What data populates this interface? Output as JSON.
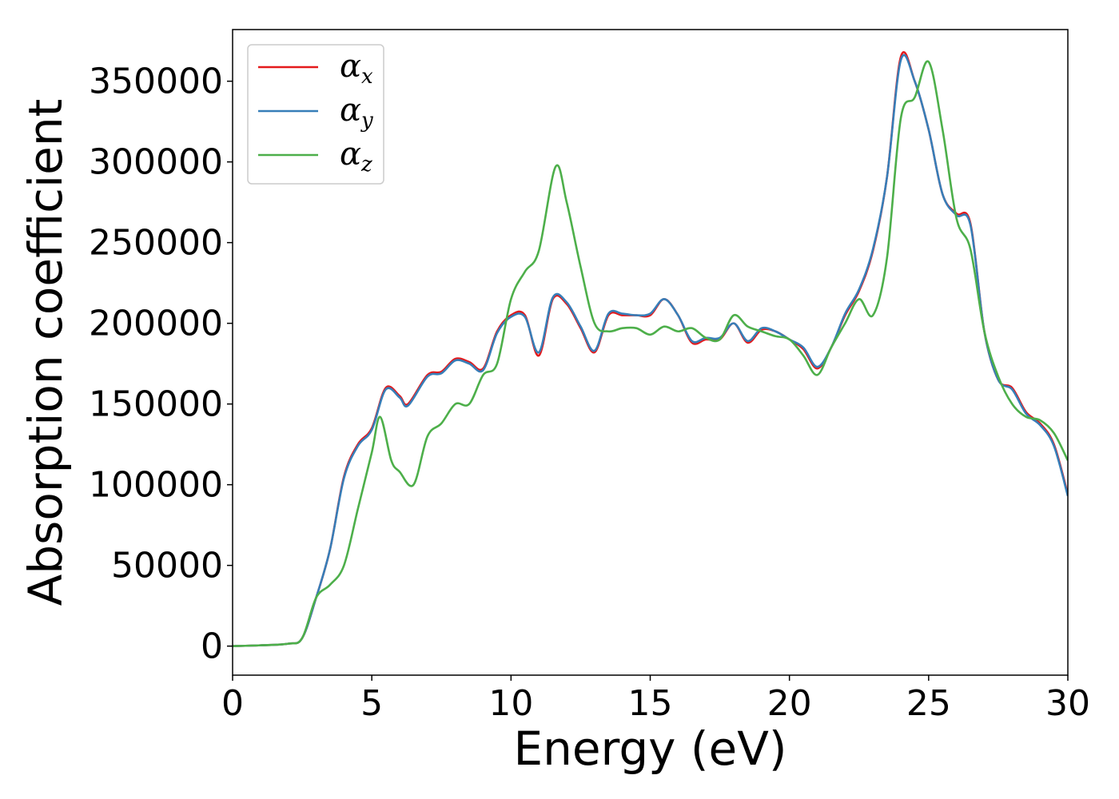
{
  "chart_data": {
    "type": "line",
    "xlabel": "Energy (eV)",
    "ylabel": "Absorption coefficient",
    "xlim": [
      0,
      30
    ],
    "ylim": [
      -18000,
      382000
    ],
    "xticks": [
      0,
      5,
      10,
      15,
      20,
      25,
      30
    ],
    "yticks": [
      0,
      50000,
      100000,
      150000,
      200000,
      250000,
      300000,
      350000
    ],
    "grid": false,
    "legend_position": "top-left",
    "series": [
      {
        "name": "α_x",
        "label_base": "α",
        "label_sub": "x",
        "color": "#e41a1c",
        "x": [
          0,
          1,
          2,
          2.5,
          3,
          3.5,
          4,
          4.5,
          5,
          5.5,
          6,
          6.3,
          7,
          7.5,
          8,
          8.5,
          9,
          9.5,
          10,
          10.5,
          11,
          11.5,
          12,
          12.5,
          13,
          13.5,
          14,
          14.5,
          15,
          15.5,
          16,
          16.5,
          17,
          17.5,
          18,
          18.5,
          19,
          19.5,
          20,
          20.5,
          21,
          21.5,
          22,
          22.5,
          23,
          23.5,
          24,
          24.5,
          25,
          25.5,
          26,
          26.5,
          27,
          27.5,
          28,
          28.5,
          29,
          29.5,
          30
        ],
        "values": [
          0,
          500,
          1500,
          5000,
          30000,
          60000,
          105000,
          125000,
          135000,
          160000,
          155000,
          150000,
          168000,
          170000,
          178000,
          176000,
          172000,
          195000,
          205000,
          205000,
          180000,
          215000,
          212000,
          197000,
          182000,
          205000,
          205000,
          205000,
          205000,
          215000,
          205000,
          188000,
          190000,
          190000,
          200000,
          188000,
          196000,
          195000,
          190000,
          184000,
          172000,
          185000,
          205000,
          220000,
          245000,
          290000,
          365000,
          350000,
          320000,
          280000,
          268000,
          262000,
          195000,
          165000,
          160000,
          145000,
          138000,
          125000,
          94000
        ]
      },
      {
        "name": "α_y",
        "label_base": "α",
        "label_sub": "y",
        "color": "#377eb8",
        "x": [
          0,
          1,
          2,
          2.5,
          3,
          3.5,
          4,
          4.5,
          5,
          5.5,
          6,
          6.3,
          7,
          7.5,
          8,
          8.5,
          9,
          9.5,
          10,
          10.5,
          11,
          11.5,
          12,
          12.5,
          13,
          13.5,
          14,
          14.5,
          15,
          15.5,
          16,
          16.5,
          17,
          17.5,
          18,
          18.5,
          19,
          19.5,
          20,
          20.5,
          21,
          21.5,
          22,
          22.5,
          23,
          23.5,
          24,
          24.5,
          25,
          25.5,
          26,
          26.5,
          27,
          27.5,
          28,
          28.5,
          29,
          29.5,
          30
        ],
        "values": [
          0,
          500,
          1500,
          5000,
          30000,
          60000,
          104000,
          124000,
          134000,
          159000,
          154000,
          149000,
          167000,
          169000,
          177000,
          175000,
          171000,
          194000,
          204000,
          204000,
          182000,
          216000,
          213000,
          198000,
          183000,
          206000,
          206000,
          205000,
          206000,
          215000,
          205000,
          189000,
          191000,
          191000,
          200000,
          189000,
          197000,
          195000,
          190000,
          185000,
          173000,
          185000,
          206000,
          221000,
          246000,
          290000,
          363000,
          350000,
          320000,
          280000,
          267000,
          261000,
          195000,
          165000,
          159000,
          144000,
          137000,
          124000,
          93000
        ]
      },
      {
        "name": "α_z",
        "label_base": "α",
        "label_sub": "z",
        "color": "#4daf4a",
        "x": [
          0,
          1,
          2,
          2.5,
          3,
          3.5,
          4,
          4.5,
          5,
          5.3,
          5.7,
          6,
          6.5,
          7,
          7.5,
          8,
          8.5,
          9,
          9.5,
          10,
          10.5,
          11,
          11.6,
          12,
          12.5,
          13,
          13.5,
          14,
          14.5,
          15,
          15.5,
          16,
          16.5,
          17,
          17.5,
          18,
          18.5,
          19,
          19.5,
          20,
          20.5,
          21,
          21.5,
          22,
          22.5,
          23,
          23.5,
          24,
          24.5,
          25,
          25.5,
          26,
          26.5,
          27,
          27.5,
          28,
          28.5,
          29,
          29.5,
          30
        ],
        "values": [
          0,
          500,
          1500,
          5000,
          30000,
          38000,
          50000,
          85000,
          120000,
          142000,
          115000,
          108000,
          100000,
          130000,
          138000,
          150000,
          150000,
          168000,
          175000,
          215000,
          232000,
          245000,
          297000,
          275000,
          235000,
          200000,
          195000,
          197000,
          197000,
          193000,
          198000,
          195000,
          197000,
          191000,
          190000,
          205000,
          198000,
          195000,
          192000,
          190000,
          180000,
          168000,
          185000,
          200000,
          215000,
          205000,
          240000,
          327000,
          340000,
          362000,
          320000,
          265000,
          246000,
          195000,
          167000,
          150000,
          142000,
          140000,
          132000,
          115000
        ]
      }
    ]
  }
}
